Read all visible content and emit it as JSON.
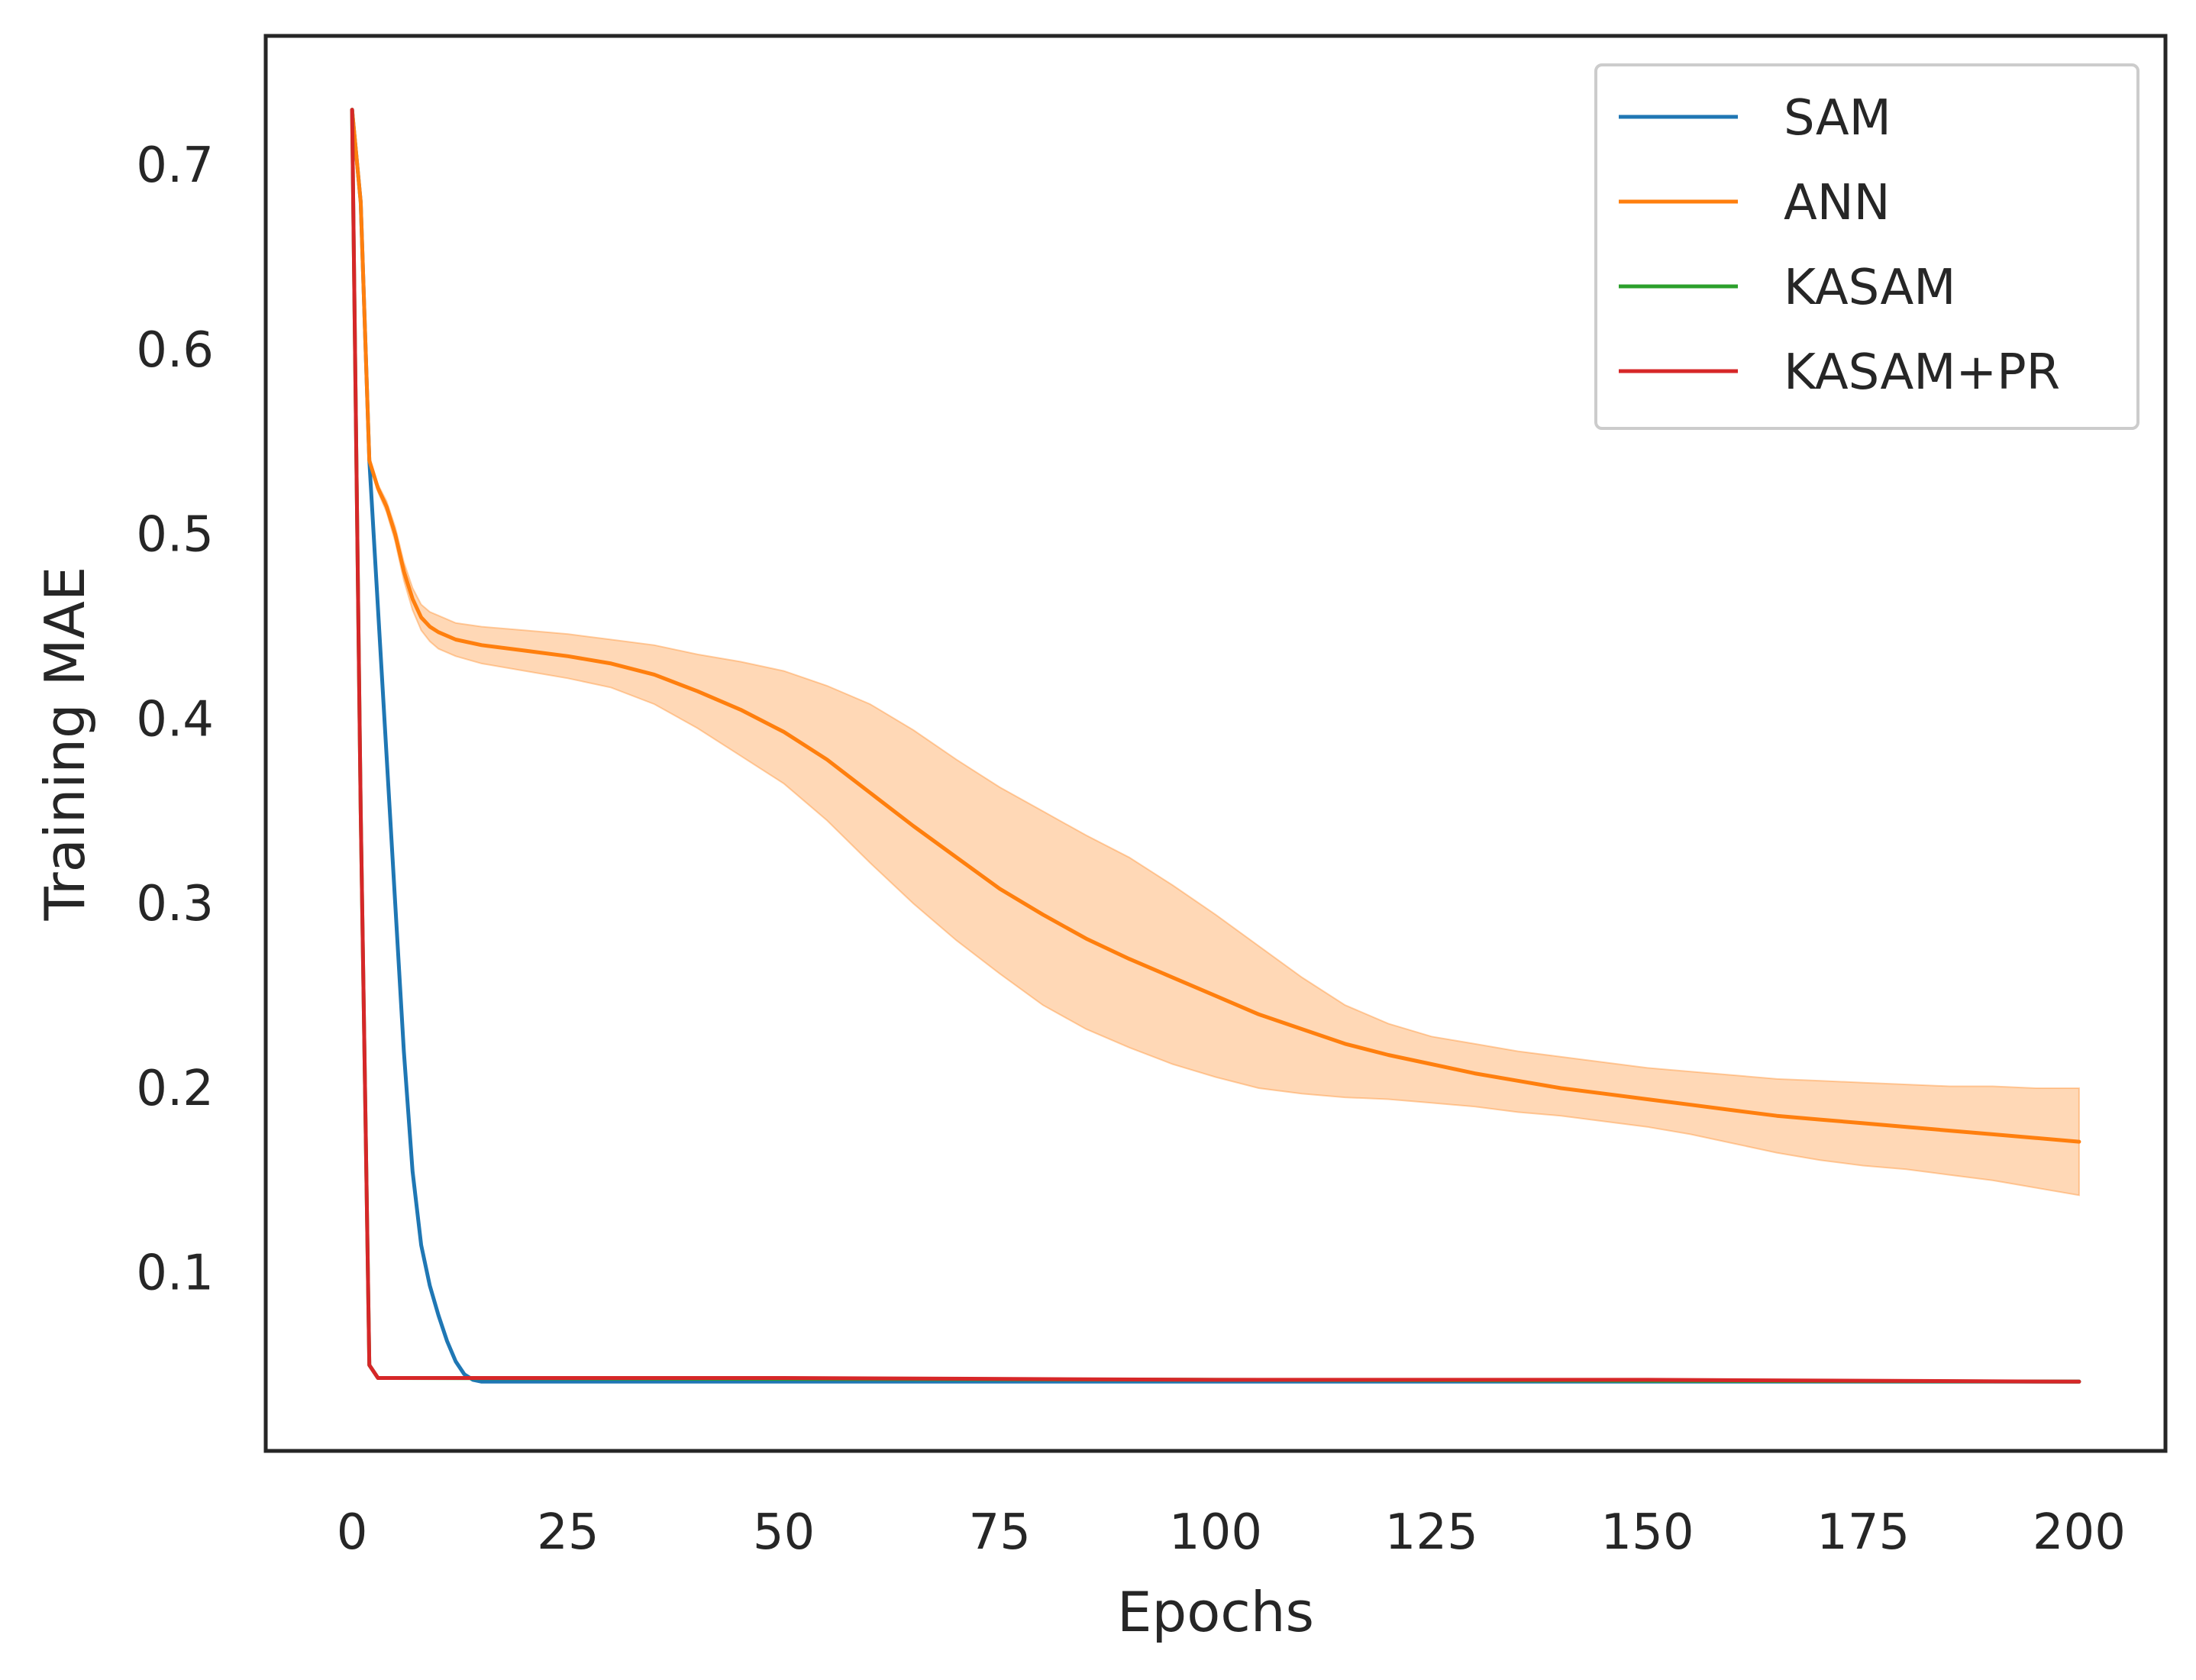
{
  "chart_data": {
    "type": "line",
    "title": "",
    "xlabel": "Epochs",
    "ylabel": "Training MAE",
    "xlim": [
      -10,
      210
    ],
    "ylim": [
      0.0035,
      0.77
    ],
    "xticks": [
      0,
      25,
      50,
      75,
      100,
      125,
      150,
      175,
      200
    ],
    "xtick_labels": [
      "0",
      "25",
      "50",
      "75",
      "100",
      "125",
      "150",
      "175",
      "200"
    ],
    "yticks": [
      0.1,
      0.2,
      0.3,
      0.4,
      0.5,
      0.6,
      0.7
    ],
    "ytick_labels": [
      "0.1",
      "0.2",
      "0.3",
      "0.4",
      "0.5",
      "0.6",
      "0.7"
    ],
    "grid": false,
    "legend_position": "top-right",
    "series": [
      {
        "name": "SAM",
        "color": "#1f77b4",
        "x": [
          0,
          1,
          2,
          3,
          4,
          5,
          6,
          7,
          8,
          9,
          10,
          11,
          12,
          13,
          14,
          15,
          20,
          50,
          100,
          150,
          200
        ],
        "y": [
          0.73,
          0.68,
          0.54,
          0.46,
          0.38,
          0.3,
          0.22,
          0.155,
          0.115,
          0.093,
          0.077,
          0.063,
          0.052,
          0.045,
          0.042,
          0.041,
          0.041,
          0.041,
          0.041,
          0.041,
          0.041
        ]
      },
      {
        "name": "ANN",
        "color": "#ff7f0e",
        "x": [
          0,
          1,
          2,
          3,
          4,
          5,
          6,
          7,
          8,
          9,
          10,
          12,
          15,
          20,
          25,
          30,
          35,
          40,
          45,
          50,
          55,
          60,
          65,
          70,
          75,
          80,
          85,
          90,
          95,
          100,
          105,
          110,
          115,
          120,
          125,
          130,
          135,
          140,
          145,
          150,
          155,
          160,
          165,
          170,
          175,
          180,
          185,
          190,
          195,
          200
        ],
        "y": [
          0.73,
          0.68,
          0.54,
          0.525,
          0.515,
          0.5,
          0.48,
          0.465,
          0.455,
          0.45,
          0.447,
          0.443,
          0.44,
          0.437,
          0.434,
          0.43,
          0.424,
          0.415,
          0.405,
          0.393,
          0.378,
          0.36,
          0.342,
          0.325,
          0.308,
          0.294,
          0.281,
          0.27,
          0.26,
          0.25,
          0.24,
          0.232,
          0.224,
          0.218,
          0.213,
          0.208,
          0.204,
          0.2,
          0.197,
          0.194,
          0.191,
          0.188,
          0.185,
          0.183,
          0.181,
          0.179,
          0.177,
          0.175,
          0.173,
          0.171
        ],
        "band_lower": [
          0.73,
          0.68,
          0.54,
          0.523,
          0.512,
          0.496,
          0.475,
          0.459,
          0.448,
          0.442,
          0.438,
          0.434,
          0.43,
          0.426,
          0.422,
          0.417,
          0.408,
          0.395,
          0.38,
          0.365,
          0.345,
          0.322,
          0.3,
          0.28,
          0.262,
          0.245,
          0.232,
          0.222,
          0.213,
          0.206,
          0.2,
          0.197,
          0.195,
          0.194,
          0.192,
          0.19,
          0.187,
          0.185,
          0.182,
          0.179,
          0.175,
          0.17,
          0.165,
          0.161,
          0.158,
          0.156,
          0.153,
          0.15,
          0.146,
          0.142
        ],
        "band_upper": [
          0.73,
          0.68,
          0.54,
          0.527,
          0.518,
          0.504,
          0.485,
          0.471,
          0.462,
          0.458,
          0.456,
          0.452,
          0.45,
          0.448,
          0.446,
          0.443,
          0.44,
          0.435,
          0.431,
          0.426,
          0.418,
          0.408,
          0.394,
          0.378,
          0.363,
          0.35,
          0.337,
          0.325,
          0.31,
          0.294,
          0.277,
          0.26,
          0.245,
          0.235,
          0.228,
          0.224,
          0.22,
          0.217,
          0.214,
          0.211,
          0.209,
          0.207,
          0.205,
          0.204,
          0.203,
          0.202,
          0.201,
          0.201,
          0.2,
          0.2
        ]
      },
      {
        "name": "KASAM",
        "color": "#2ca02c",
        "x": [
          0,
          1,
          2,
          3,
          200
        ],
        "y": [
          0.73,
          0.35,
          0.05,
          0.043,
          0.041
        ]
      },
      {
        "name": "KASAM+PR",
        "color": "#d62728",
        "x": [
          0,
          1,
          2,
          3,
          50,
          100,
          150,
          200
        ],
        "y": [
          0.73,
          0.35,
          0.05,
          0.043,
          0.043,
          0.042,
          0.042,
          0.041
        ]
      }
    ]
  }
}
